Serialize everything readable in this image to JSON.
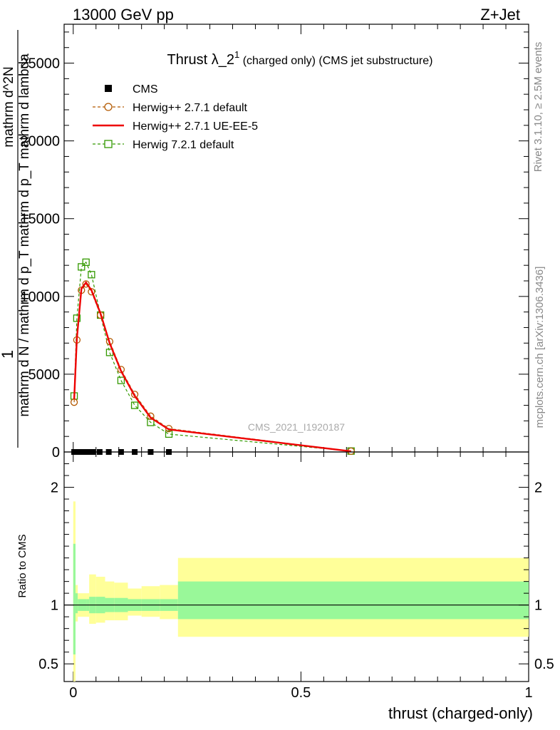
{
  "header": {
    "left": "13000 GeV pp",
    "right": "Z+Jet"
  },
  "side_text": {
    "rivet": "Rivet 3.1.10, ≥ 2.5M events",
    "mcplots": "mcplots.cern.ch [arXiv:1306.3436]"
  },
  "watermark": "CMS_2021_I1920187",
  "colors": {
    "herwig_default": "#b35900",
    "herwig_ueee5": "#ee0000",
    "herwig721": "#339900",
    "band_inner": "#99f899",
    "band_outer": "#ffff99",
    "data": "#000000"
  },
  "chart_data": [
    {
      "type": "line",
      "title_main": "Thrust λ_2",
      "title_sup": "1",
      "title_rest": " (charged only) (CMS jet substructure)",
      "xlabel": "thrust (charged-only)",
      "ylabel_lines": [
        "1",
        "mathrm d N / mathrm d p_T mathrm d p_T mathrm d lambda",
        "mathrm d^2N"
      ],
      "xlim": [
        -0.02,
        1.0
      ],
      "ylim": [
        0,
        27500
      ],
      "yticks": [
        {
          "v": 0,
          "label": "0"
        },
        {
          "v": 5000,
          "label": "5000"
        },
        {
          "v": 10000,
          "label": "10000"
        },
        {
          "v": 15000,
          "label": "15000"
        },
        {
          "v": 20000,
          "label": "20000"
        },
        {
          "v": 25000,
          "label": "25000"
        }
      ],
      "legend": [
        {
          "name": "CMS",
          "style": "data"
        },
        {
          "name": "Herwig++ 2.7.1 default",
          "style": "circle"
        },
        {
          "name": "Herwig++ 2.7.1 UE-EE-5",
          "style": "solid"
        },
        {
          "name": "Herwig 7.2.1 default",
          "style": "square"
        }
      ],
      "data_points": [
        {
          "x": 0.002,
          "y": 0
        },
        {
          "x": 0.012,
          "y": 0
        },
        {
          "x": 0.022,
          "y": 0
        },
        {
          "x": 0.032,
          "y": 0
        },
        {
          "x": 0.043,
          "y": 0
        },
        {
          "x": 0.058,
          "y": 0
        },
        {
          "x": 0.078,
          "y": 0
        },
        {
          "x": 0.105,
          "y": 0
        },
        {
          "x": 0.135,
          "y": 0
        },
        {
          "x": 0.17,
          "y": 0
        },
        {
          "x": 0.21,
          "y": 0
        }
      ],
      "series": [
        {
          "name": "Herwig++ 2.7.1 default",
          "x": [
            0.002,
            0.008,
            0.018,
            0.028,
            0.04,
            0.06,
            0.08,
            0.105,
            0.135,
            0.17,
            0.21,
            0.61
          ],
          "values": [
            3200,
            7200,
            10400,
            10800,
            10300,
            8800,
            7100,
            5300,
            3700,
            2300,
            1500,
            50
          ]
        },
        {
          "name": "Herwig++ 2.7.1 UE-EE-5",
          "x": [
            0.002,
            0.008,
            0.018,
            0.028,
            0.04,
            0.06,
            0.08,
            0.105,
            0.135,
            0.17,
            0.21,
            0.61
          ],
          "values": [
            3400,
            7300,
            10500,
            10900,
            10400,
            8900,
            7000,
            5200,
            3600,
            2200,
            1450,
            40
          ]
        },
        {
          "name": "Herwig 7.2.1 default",
          "x": [
            0.002,
            0.008,
            0.018,
            0.028,
            0.04,
            0.06,
            0.08,
            0.105,
            0.135,
            0.17,
            0.21,
            0.61
          ],
          "values": [
            3600,
            8600,
            11900,
            12200,
            11400,
            8800,
            6400,
            4600,
            3000,
            1900,
            1150,
            60
          ]
        }
      ]
    },
    {
      "type": "area",
      "ylabel": "Ratio to CMS",
      "xlim": [
        -0.02,
        1.0
      ],
      "ylim": [
        0.35,
        2.3
      ],
      "yticks": [
        {
          "v": 0.5,
          "label": "0.5"
        },
        {
          "v": 1,
          "label": "1"
        },
        {
          "v": 2,
          "label": "2"
        }
      ],
      "xticks": [
        {
          "v": 0,
          "label": "0"
        },
        {
          "v": 0.5,
          "label": "0.5"
        },
        {
          "v": 1,
          "label": "1"
        }
      ],
      "bands": [
        {
          "x0": 0.0,
          "x1": 0.005,
          "inner": [
            0.58,
            1.52
          ],
          "outer": [
            0.32,
            1.88
          ]
        },
        {
          "x0": 0.005,
          "x1": 0.01,
          "inner": [
            0.93,
            1.1
          ],
          "outer": [
            0.86,
            1.17
          ]
        },
        {
          "x0": 0.01,
          "x1": 0.03,
          "inner": [
            0.95,
            1.05
          ],
          "outer": [
            0.9,
            1.1
          ]
        },
        {
          "x0": 0.03,
          "x1": 0.035,
          "inner": [
            0.95,
            1.05
          ],
          "outer": [
            0.9,
            1.1
          ]
        },
        {
          "x0": 0.035,
          "x1": 0.05,
          "inner": [
            0.93,
            1.07
          ],
          "outer": [
            0.84,
            1.26
          ]
        },
        {
          "x0": 0.05,
          "x1": 0.07,
          "inner": [
            0.93,
            1.07
          ],
          "outer": [
            0.85,
            1.24
          ]
        },
        {
          "x0": 0.07,
          "x1": 0.09,
          "inner": [
            0.94,
            1.06
          ],
          "outer": [
            0.87,
            1.2
          ]
        },
        {
          "x0": 0.09,
          "x1": 0.12,
          "inner": [
            0.94,
            1.06
          ],
          "outer": [
            0.87,
            1.19
          ]
        },
        {
          "x0": 0.12,
          "x1": 0.15,
          "inner": [
            0.95,
            1.05
          ],
          "outer": [
            0.91,
            1.14
          ]
        },
        {
          "x0": 0.15,
          "x1": 0.19,
          "inner": [
            0.95,
            1.05
          ],
          "outer": [
            0.9,
            1.16
          ]
        },
        {
          "x0": 0.19,
          "x1": 0.23,
          "inner": [
            0.95,
            1.05
          ],
          "outer": [
            0.88,
            1.17
          ]
        },
        {
          "x0": 0.23,
          "x1": 1.0,
          "inner": [
            0.88,
            1.2
          ],
          "outer": [
            0.73,
            1.4
          ]
        }
      ]
    }
  ]
}
